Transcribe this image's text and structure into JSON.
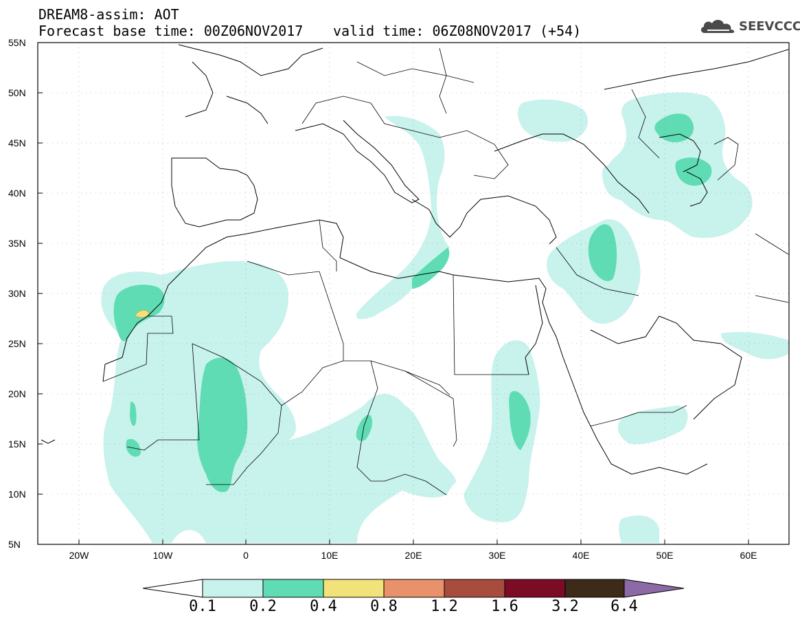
{
  "header": {
    "title_line1": "DREAM8-assim: AOT",
    "title_line2": "Forecast base time: 00Z06NOV2017",
    "valid_time": "valid time: 06Z08NOV2017 (+54)"
  },
  "logo": {
    "text": "SEEVCCC",
    "icon": "cloud-icon"
  },
  "axes": {
    "lat_labels": [
      "55N",
      "50N",
      "45N",
      "40N",
      "35N",
      "30N",
      "25N",
      "20N",
      "15N",
      "10N",
      "5N"
    ],
    "lon_labels": [
      "20W",
      "10W",
      "0",
      "10E",
      "20E",
      "30E",
      "40E",
      "50E",
      "60E"
    ]
  },
  "colorbar": {
    "labels": [
      "0.1",
      "0.2",
      "0.4",
      "0.8",
      "1.2",
      "1.6",
      "3.2",
      "6.4"
    ],
    "colors": [
      "#ffffff",
      "#c8f2ec",
      "#5fdcb3",
      "#f2e27a",
      "#e8916a",
      "#a84c3e",
      "#7c0c26",
      "#3d2a18",
      "#8c6aa5"
    ]
  },
  "colors": {
    "aot_low": "#c8f2ec",
    "aot_mid": "#5fdcb3",
    "aot_high": "#f2e27a",
    "coast": "#000000"
  }
}
